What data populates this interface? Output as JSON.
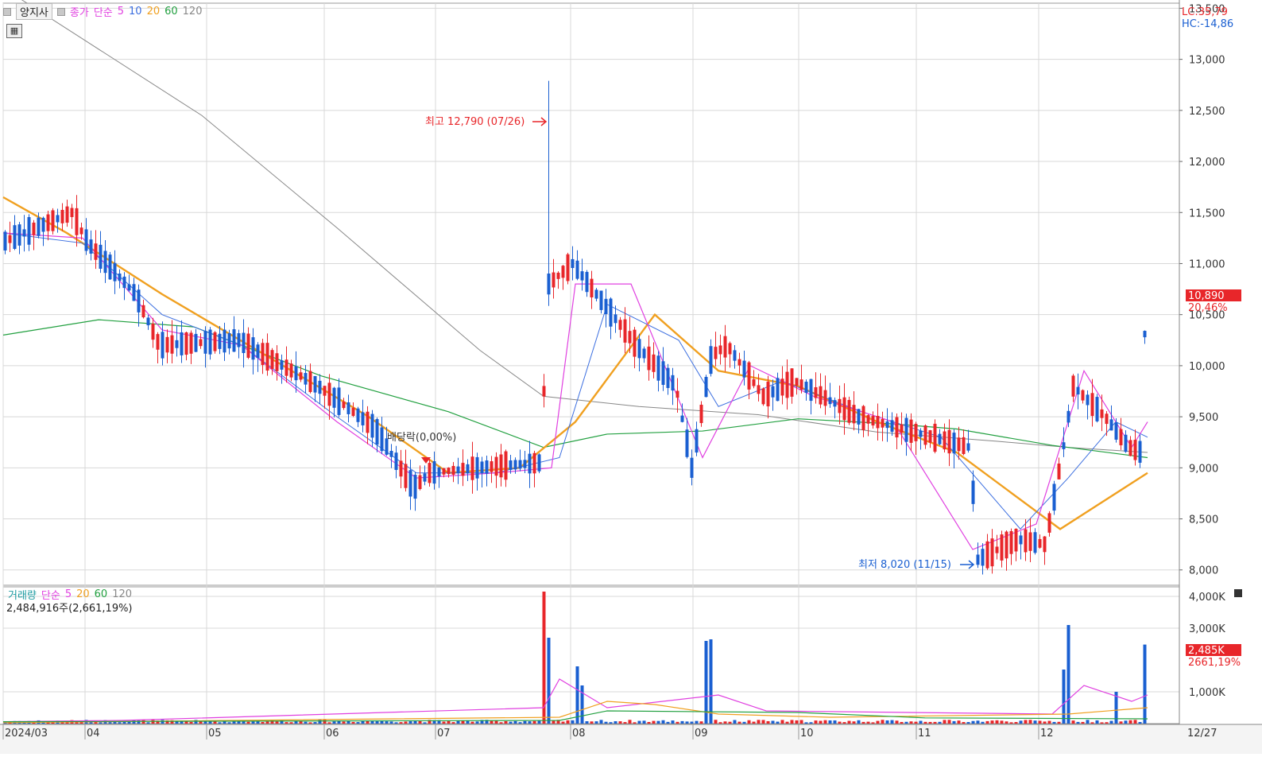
{
  "legend": {
    "stock_name": "양지사",
    "price_label": "종가",
    "ma_type": "단순",
    "ma_periods": [
      "5",
      "10",
      "20",
      "60",
      "120"
    ]
  },
  "volume_legend": {
    "label": "거래량",
    "ma_type": "단순",
    "ma_periods": [
      "5",
      "20",
      "60",
      "120"
    ],
    "summary": "2,484,916주(2,661,19%)"
  },
  "top_right": {
    "lc": "LC:35,79",
    "hc": "HC:-14,86"
  },
  "current": {
    "price": "10,890",
    "change": "20,46%",
    "volume": "2,485K",
    "volume_pct": "2661,19%"
  },
  "annotations": {
    "high": "최고 12,790 (07/26)",
    "low": "최저 8,020 (11/15)",
    "dividend": "배당락(0,00%)"
  },
  "colors": {
    "up": "#e8262a",
    "down": "#1a5fd1",
    "ma5": "#e040e0",
    "ma10": "#3c6fe0",
    "ma20": "#f0a020",
    "ma60": "#22a040",
    "ma120": "#888888"
  },
  "chart_data": {
    "type": "candlestick",
    "price_ylim": [
      7850,
      13550
    ],
    "price_ticks": [
      "13,500",
      "13,000",
      "12,500",
      "12,000",
      "11,500",
      "11,000",
      "10,500",
      "10,000",
      "9,500",
      "9,000",
      "8,500",
      "8,000"
    ],
    "volume_ticks": [
      "4,000K",
      "3,000K",
      "1,000K"
    ],
    "x_labels": [
      "2024/03",
      "04",
      "05",
      "06",
      "07",
      "08",
      "09",
      "10",
      "11",
      "12",
      "12/27"
    ],
    "highlights": {
      "high": 12790,
      "low": 8020,
      "last_close": 10890
    },
    "ma_series": {
      "ma120": [
        [
          0,
          13700
        ],
        [
          100,
          13200
        ],
        [
          250,
          12450
        ],
        [
          420,
          11350
        ],
        [
          600,
          10150
        ],
        [
          680,
          9700
        ],
        [
          800,
          9600
        ],
        [
          950,
          9520
        ],
        [
          1100,
          9350
        ],
        [
          1250,
          9260
        ],
        [
          1340,
          9200
        ],
        [
          1440,
          9150
        ]
      ],
      "ma60": [
        [
          0,
          10300
        ],
        [
          120,
          10450
        ],
        [
          240,
          10380
        ],
        [
          400,
          9900
        ],
        [
          560,
          9550
        ],
        [
          680,
          9200
        ],
        [
          760,
          9330
        ],
        [
          880,
          9360
        ],
        [
          1000,
          9480
        ],
        [
          1120,
          9430
        ],
        [
          1200,
          9380
        ],
        [
          1320,
          9220
        ],
        [
          1440,
          9100
        ]
      ],
      "ma20": [
        [
          0,
          11650
        ],
        [
          80,
          11300
        ],
        [
          200,
          10700
        ],
        [
          320,
          10150
        ],
        [
          460,
          9500
        ],
        [
          560,
          8950
        ],
        [
          650,
          9000
        ],
        [
          720,
          9450
        ],
        [
          820,
          10500
        ],
        [
          900,
          9950
        ],
        [
          1000,
          9800
        ],
        [
          1100,
          9450
        ],
        [
          1200,
          9150
        ],
        [
          1330,
          8400
        ],
        [
          1440,
          8950
        ]
      ],
      "ma10": [
        [
          0,
          11300
        ],
        [
          100,
          11200
        ],
        [
          200,
          10500
        ],
        [
          300,
          10200
        ],
        [
          420,
          9500
        ],
        [
          520,
          8950
        ],
        [
          620,
          8950
        ],
        [
          700,
          9100
        ],
        [
          760,
          10600
        ],
        [
          850,
          10250
        ],
        [
          900,
          9600
        ],
        [
          980,
          9850
        ],
        [
          1080,
          9550
        ],
        [
          1180,
          9300
        ],
        [
          1280,
          8400
        ],
        [
          1340,
          8900
        ],
        [
          1400,
          9450
        ],
        [
          1440,
          9300
        ]
      ],
      "ma5": [
        [
          0,
          11300
        ],
        [
          100,
          11250
        ],
        [
          200,
          10350
        ],
        [
          300,
          10200
        ],
        [
          420,
          9450
        ],
        [
          520,
          8900
        ],
        [
          620,
          8950
        ],
        [
          690,
          9000
        ],
        [
          720,
          10800
        ],
        [
          790,
          10800
        ],
        [
          880,
          9100
        ],
        [
          940,
          10000
        ],
        [
          1020,
          9700
        ],
        [
          1120,
          9450
        ],
        [
          1220,
          8200
        ],
        [
          1300,
          8450
        ],
        [
          1360,
          9950
        ],
        [
          1420,
          9200
        ],
        [
          1440,
          9450
        ]
      ],
      "vol_ma5": [
        [
          0,
          60
        ],
        [
          150,
          100
        ],
        [
          680,
          500
        ],
        [
          700,
          1400
        ],
        [
          760,
          500
        ],
        [
          900,
          900
        ],
        [
          960,
          400
        ],
        [
          1320,
          300
        ],
        [
          1360,
          1200
        ],
        [
          1420,
          700
        ],
        [
          1440,
          900
        ]
      ],
      "vol_ma20": [
        [
          0,
          30
        ],
        [
          700,
          200
        ],
        [
          760,
          700
        ],
        [
          820,
          600
        ],
        [
          900,
          300
        ],
        [
          1040,
          200
        ],
        [
          1340,
          300
        ],
        [
          1440,
          500
        ]
      ],
      "vol_ma60": [
        [
          0,
          60
        ],
        [
          700,
          100
        ],
        [
          760,
          400
        ],
        [
          1000,
          350
        ],
        [
          1160,
          180
        ],
        [
          1440,
          150
        ]
      ]
    }
  }
}
